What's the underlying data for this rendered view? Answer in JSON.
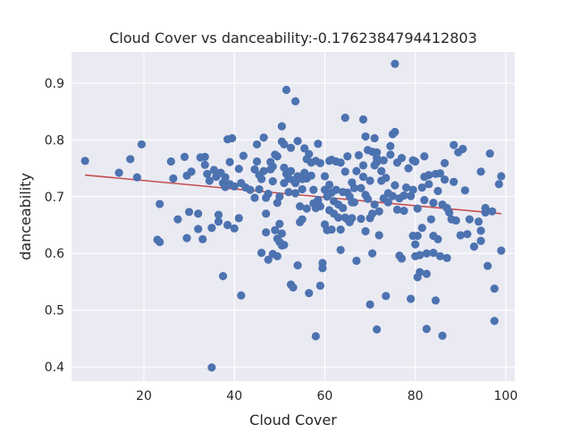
{
  "chart_data": {
    "type": "scatter",
    "title": "Cloud Cover vs danceability:-0.1762384794412803",
    "xlabel": "Cloud Cover",
    "ylabel": "danceability",
    "xlim": [
      4,
      102
    ],
    "ylim": [
      0.375,
      0.955
    ],
    "xticks": [
      20,
      40,
      60,
      80,
      100
    ],
    "yticks": [
      0.4,
      0.5,
      0.6,
      0.7,
      0.8,
      0.9
    ],
    "grid": true,
    "legend": "none",
    "colors": {
      "background": "#eaeaf2",
      "points": "#4c72b0",
      "trend": "#c44e52"
    },
    "trendline": {
      "x": [
        7,
        99
      ],
      "y": [
        0.738,
        0.67
      ]
    },
    "points": [
      [
        7,
        0.763
      ],
      [
        14.5,
        0.742
      ],
      [
        17,
        0.766
      ],
      [
        18.5,
        0.734
      ],
      [
        19.5,
        0.792
      ],
      [
        23,
        0.624
      ],
      [
        23.5,
        0.62
      ],
      [
        23.5,
        0.687
      ],
      [
        26,
        0.762
      ],
      [
        26.5,
        0.732
      ],
      [
        27.5,
        0.66
      ],
      [
        29,
        0.77
      ],
      [
        29.5,
        0.737
      ],
      [
        29.5,
        0.627
      ],
      [
        30,
        0.673
      ],
      [
        30.5,
        0.744
      ],
      [
        32,
        0.643
      ],
      [
        32,
        0.67
      ],
      [
        32.5,
        0.769
      ],
      [
        33,
        0.625
      ],
      [
        33.5,
        0.756
      ],
      [
        33.5,
        0.77
      ],
      [
        34,
        0.74
      ],
      [
        34.5,
        0.728
      ],
      [
        35,
        0.399
      ],
      [
        35,
        0.645
      ],
      [
        35.5,
        0.747
      ],
      [
        36,
        0.735
      ],
      [
        36.5,
        0.656
      ],
      [
        36.5,
        0.668
      ],
      [
        37,
        0.742
      ],
      [
        37.5,
        0.724
      ],
      [
        37.5,
        0.56
      ],
      [
        38,
        0.717
      ],
      [
        38,
        0.734
      ],
      [
        38.5,
        0.65
      ],
      [
        38.5,
        0.801
      ],
      [
        39,
        0.722
      ],
      [
        39,
        0.761
      ],
      [
        39.5,
        0.803
      ],
      [
        40,
        0.718
      ],
      [
        40,
        0.644
      ],
      [
        41,
        0.662
      ],
      [
        41,
        0.749
      ],
      [
        41.5,
        0.724
      ],
      [
        41.5,
        0.526
      ],
      [
        42,
        0.772
      ],
      [
        42.5,
        0.716
      ],
      [
        43.5,
        0.712
      ],
      [
        44.5,
        0.748
      ],
      [
        44.5,
        0.698
      ],
      [
        45,
        0.762
      ],
      [
        45,
        0.792
      ],
      [
        45.5,
        0.738
      ],
      [
        45.5,
        0.713
      ],
      [
        46,
        0.731
      ],
      [
        46,
        0.601
      ],
      [
        46.5,
        0.804
      ],
      [
        46.5,
        0.745
      ],
      [
        47,
        0.698
      ],
      [
        47,
        0.67
      ],
      [
        47,
        0.637
      ],
      [
        47.5,
        0.589
      ],
      [
        47.5,
        0.705
      ],
      [
        48,
        0.761
      ],
      [
        48,
        0.748
      ],
      [
        48.5,
        0.753
      ],
      [
        48.5,
        0.599
      ],
      [
        48.5,
        0.727
      ],
      [
        49,
        0.774
      ],
      [
        49,
        0.641
      ],
      [
        49.5,
        0.771
      ],
      [
        49.5,
        0.595
      ],
      [
        49.5,
        0.626
      ],
      [
        49.5,
        0.689
      ],
      [
        50,
        0.7
      ],
      [
        50,
        0.62
      ],
      [
        50,
        0.652
      ],
      [
        50.5,
        0.614
      ],
      [
        50.5,
        0.635
      ],
      [
        50.5,
        0.797
      ],
      [
        50.5,
        0.824
      ],
      [
        51,
        0.751
      ],
      [
        51,
        0.724
      ],
      [
        51,
        0.792
      ],
      [
        51,
        0.615
      ],
      [
        51.5,
        0.888
      ],
      [
        51.5,
        0.74
      ],
      [
        52,
        0.708
      ],
      [
        52,
        0.732
      ],
      [
        52.5,
        0.786
      ],
      [
        52.5,
        0.745
      ],
      [
        52.5,
        0.545
      ],
      [
        53,
        0.54
      ],
      [
        53,
        0.729
      ],
      [
        53.5,
        0.868
      ],
      [
        53.5,
        0.724
      ],
      [
        53.5,
        0.706
      ],
      [
        54,
        0.579
      ],
      [
        54,
        0.736
      ],
      [
        54,
        0.798
      ],
      [
        54.5,
        0.683
      ],
      [
        54.5,
        0.655
      ],
      [
        55,
        0.731
      ],
      [
        55,
        0.713
      ],
      [
        55,
        0.66
      ],
      [
        55.5,
        0.742
      ],
      [
        55.5,
        0.785
      ],
      [
        56,
        0.766
      ],
      [
        56,
        0.679
      ],
      [
        56,
        0.732
      ],
      [
        56.5,
        0.775
      ],
      [
        56.5,
        0.53
      ],
      [
        57,
        0.737
      ],
      [
        57,
        0.76
      ],
      [
        57.5,
        0.688
      ],
      [
        57.5,
        0.712
      ],
      [
        58,
        0.454
      ],
      [
        58,
        0.763
      ],
      [
        58,
        0.68
      ],
      [
        58.5,
        0.694
      ],
      [
        58.5,
        0.793
      ],
      [
        59,
        0.759
      ],
      [
        59,
        0.683
      ],
      [
        59,
        0.543
      ],
      [
        59.5,
        0.583
      ],
      [
        59.5,
        0.574
      ],
      [
        60,
        0.736
      ],
      [
        60,
        0.712
      ],
      [
        60,
        0.651
      ],
      [
        60.5,
        0.7
      ],
      [
        60.5,
        0.641
      ],
      [
        61,
        0.763
      ],
      [
        61,
        0.721
      ],
      [
        61,
        0.676
      ],
      [
        61.5,
        0.765
      ],
      [
        61.5,
        0.642
      ],
      [
        61.5,
        0.707
      ],
      [
        62,
        0.692
      ],
      [
        62,
        0.67
      ],
      [
        62.5,
        0.712
      ],
      [
        62.5,
        0.762
      ],
      [
        63,
        0.686
      ],
      [
        63,
        0.663
      ],
      [
        63.5,
        0.76
      ],
      [
        63.5,
        0.642
      ],
      [
        63.5,
        0.606
      ],
      [
        64,
        0.68
      ],
      [
        64,
        0.708
      ],
      [
        64.5,
        0.663
      ],
      [
        64.5,
        0.744
      ],
      [
        64.5,
        0.839
      ],
      [
        65,
        0.66
      ],
      [
        65,
        0.707
      ],
      [
        65,
        0.771
      ],
      [
        65.5,
        0.7
      ],
      [
        65.5,
        0.655
      ],
      [
        66,
        0.725
      ],
      [
        66,
        0.662
      ],
      [
        66.5,
        0.715
      ],
      [
        66.5,
        0.69
      ],
      [
        67,
        0.587
      ],
      [
        67,
        0.745
      ],
      [
        67.5,
        0.773
      ],
      [
        68,
        0.661
      ],
      [
        68,
        0.715
      ],
      [
        68.5,
        0.836
      ],
      [
        68.5,
        0.755
      ],
      [
        68.5,
        0.735
      ],
      [
        69,
        0.703
      ],
      [
        69,
        0.806
      ],
      [
        69,
        0.639
      ],
      [
        69.5,
        0.696
      ],
      [
        69.5,
        0.782
      ],
      [
        70,
        0.662
      ],
      [
        70,
        0.728
      ],
      [
        70,
        0.51
      ],
      [
        70.5,
        0.779
      ],
      [
        70.5,
        0.67
      ],
      [
        70.5,
        0.6
      ],
      [
        71,
        0.755
      ],
      [
        71,
        0.686
      ],
      [
        71,
        0.803
      ],
      [
        71.5,
        0.778
      ],
      [
        71.5,
        0.761
      ],
      [
        71.5,
        0.466
      ],
      [
        72,
        0.632
      ],
      [
        72,
        0.674
      ],
      [
        72.5,
        0.728
      ],
      [
        72.5,
        0.745
      ],
      [
        73,
        0.697
      ],
      [
        73,
        0.764
      ],
      [
        73.5,
        0.525
      ],
      [
        73.5,
        0.733
      ],
      [
        74,
        0.69
      ],
      [
        74,
        0.706
      ],
      [
        74.5,
        0.789
      ],
      [
        74.5,
        0.774
      ],
      [
        75,
        0.81
      ],
      [
        75,
        0.701
      ],
      [
        75.5,
        0.934
      ],
      [
        75.5,
        0.814
      ],
      [
        75.5,
        0.72
      ],
      [
        76,
        0.677
      ],
      [
        76,
        0.76
      ],
      [
        76.5,
        0.697
      ],
      [
        76.5,
        0.596
      ],
      [
        77,
        0.768
      ],
      [
        77,
        0.591
      ],
      [
        77.5,
        0.702
      ],
      [
        77.5,
        0.675
      ],
      [
        78,
        0.716
      ],
      [
        78.5,
        0.75
      ],
      [
        79,
        0.52
      ],
      [
        79,
        0.701
      ],
      [
        79.5,
        0.764
      ],
      [
        79.5,
        0.631
      ],
      [
        79.5,
        0.712
      ],
      [
        80,
        0.595
      ],
      [
        80,
        0.616
      ],
      [
        80,
        0.762
      ],
      [
        80.5,
        0.631
      ],
      [
        80.5,
        0.558
      ],
      [
        80.5,
        0.679
      ],
      [
        81,
        0.567
      ],
      [
        81,
        0.597
      ],
      [
        81.5,
        0.645
      ],
      [
        81.5,
        0.716
      ],
      [
        82,
        0.694
      ],
      [
        82,
        0.771
      ],
      [
        82,
        0.735
      ],
      [
        82.5,
        0.467
      ],
      [
        82.5,
        0.6
      ],
      [
        82.5,
        0.564
      ],
      [
        83,
        0.738
      ],
      [
        83,
        0.722
      ],
      [
        83.5,
        0.66
      ],
      [
        84,
        0.631
      ],
      [
        84,
        0.689
      ],
      [
        84,
        0.601
      ],
      [
        84.5,
        0.74
      ],
      [
        84.5,
        0.517
      ],
      [
        85,
        0.71
      ],
      [
        85,
        0.625
      ],
      [
        85.5,
        0.741
      ],
      [
        85.5,
        0.595
      ],
      [
        86,
        0.455
      ],
      [
        86,
        0.686
      ],
      [
        86.5,
        0.73
      ],
      [
        86.5,
        0.759
      ],
      [
        87,
        0.68
      ],
      [
        87,
        0.592
      ],
      [
        87.5,
        0.672
      ],
      [
        88,
        0.66
      ],
      [
        88.5,
        0.791
      ],
      [
        88.5,
        0.726
      ],
      [
        89,
        0.658
      ],
      [
        89.5,
        0.778
      ],
      [
        90,
        0.632
      ],
      [
        90.5,
        0.784
      ],
      [
        91,
        0.711
      ],
      [
        91.5,
        0.634
      ],
      [
        92,
        0.66
      ],
      [
        93,
        0.612
      ],
      [
        94,
        0.656
      ],
      [
        94.5,
        0.622
      ],
      [
        94.5,
        0.744
      ],
      [
        95.5,
        0.672
      ],
      [
        95.5,
        0.68
      ],
      [
        96,
        0.578
      ],
      [
        96.5,
        0.776
      ],
      [
        97,
        0.674
      ],
      [
        97.5,
        0.538
      ],
      [
        97.5,
        0.481
      ],
      [
        98.5,
        0.722
      ],
      [
        99,
        0.736
      ],
      [
        99,
        0.605
      ],
      [
        94.5,
        0.64
      ],
      [
        71.5,
        0.768
      ],
      [
        66,
        0.69
      ]
    ]
  }
}
